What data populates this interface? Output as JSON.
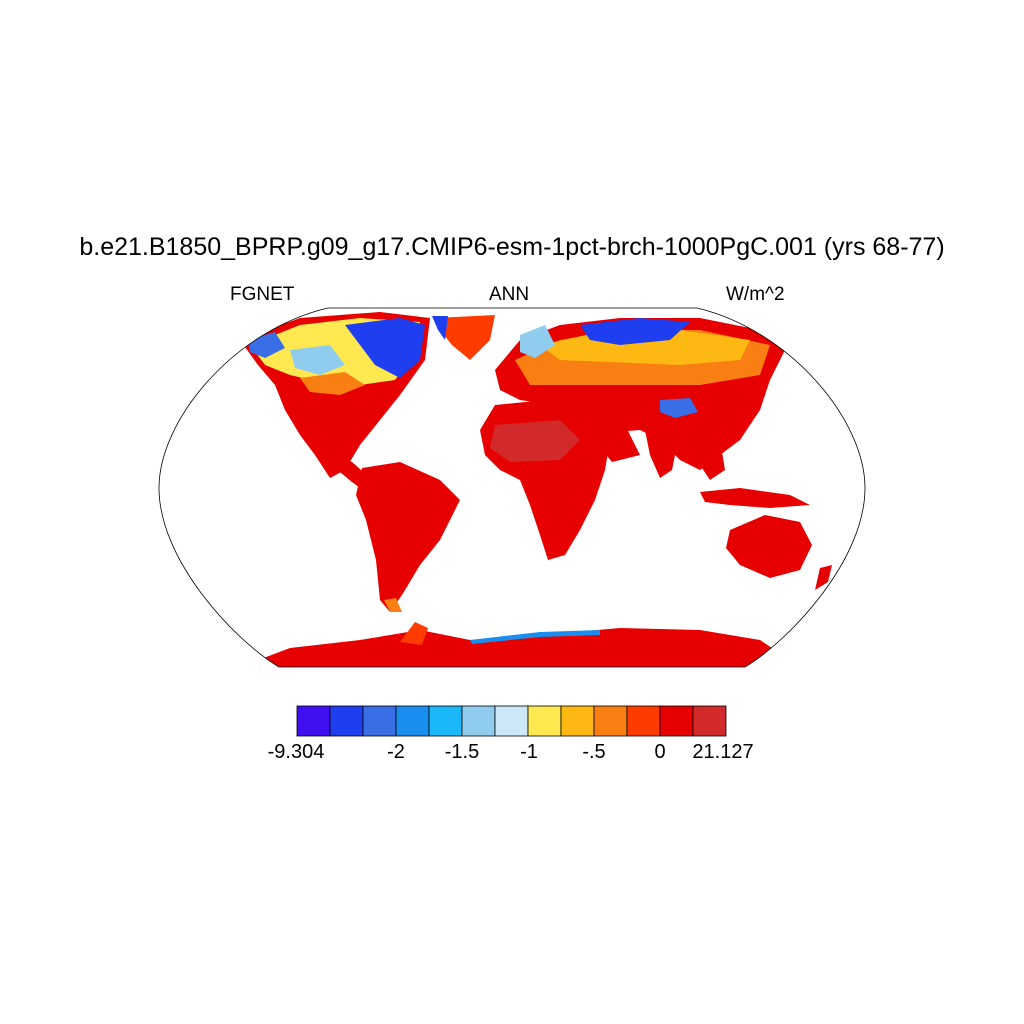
{
  "title": "b.e21.B1850_BPRP.g09_g17.CMIP6-esm-1pct-brch-1000PgC.001 (yrs 68-77)",
  "subtitle_left": "FGNET",
  "subtitle_center": "ANN",
  "subtitle_right": "W/m^2",
  "map": {
    "projection": "robinson",
    "variable": "FGNET",
    "season": "ANN",
    "units": "W/m^2",
    "ocean_color": "#ffffff",
    "dominant_land_value": "> 0 (red)",
    "regions": [
      {
        "name": "northern high-latitude land (Canada, Alaska, Siberia, Greenland)",
        "level": "mixed -9.304 to 0 (blues/yellows/oranges)"
      },
      {
        "name": "mid/low-latitude land",
        "level": "0 to 21.127 (red)"
      },
      {
        "name": "Antarctica",
        "level": "0 to 21.127 (red), blue fringe along coast"
      }
    ]
  },
  "colorbar": {
    "colors": [
      "#4010f0",
      "#1e3ef0",
      "#3a6ee6",
      "#1a8ef0",
      "#1ab8f8",
      "#90ccee",
      "#cce8f8",
      "#ffe850",
      "#fdb813",
      "#f97f12",
      "#ff3c00",
      "#e60000",
      "#d22a2a"
    ],
    "labels": [
      "-9.304",
      "-2",
      "-1.5",
      "-1",
      "-.5",
      "0",
      "21.127"
    ]
  }
}
